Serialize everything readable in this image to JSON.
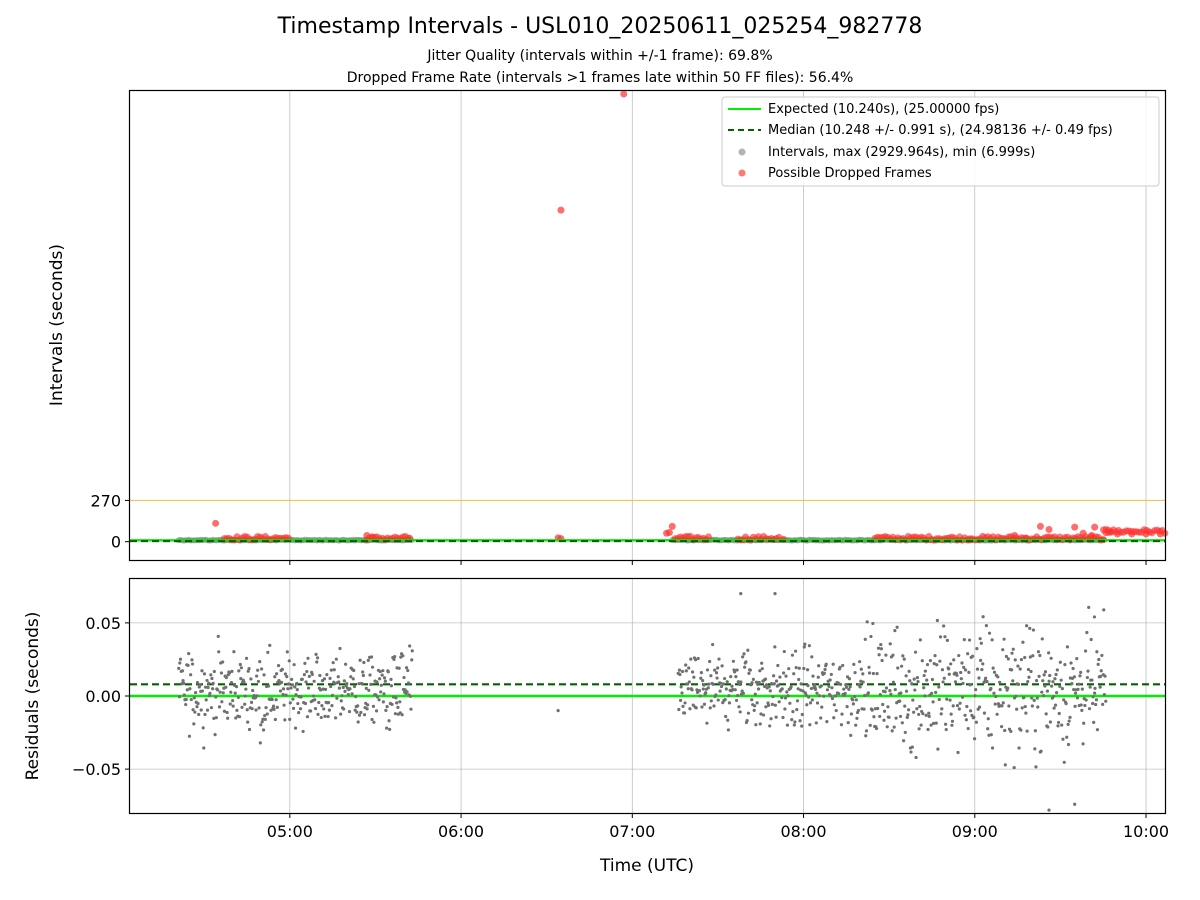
{
  "chart_data": {
    "title": "Timestamp Intervals - USL010_20250611_025254_982778",
    "subtitles": [
      "Jitter Quality (intervals within +/-1 frame): 69.8%",
      "Dropped Frame Rate (intervals >1 frames late within 50 FF files): 56.4%"
    ],
    "top_panel": {
      "type": "scatter",
      "ylabel": "Intervals (seconds)",
      "yticks": [
        0,
        270
      ],
      "ylim": [
        -120,
        2950
      ],
      "xlim": [
        "04:04",
        "10:07"
      ],
      "grid": true,
      "threshold_line": {
        "y": 270,
        "color": "#f5c542"
      },
      "legend_position": "upper right",
      "series": [
        {
          "name": "Expected (10.240s), (25.00000 fps)",
          "kind": "hline",
          "y": 10.24,
          "color": "#00ee00"
        },
        {
          "name": "Median (10.248 +/- 0.991 s), (24.98136 +/- 0.49 fps)",
          "kind": "hline-dashed",
          "y": 10.248,
          "color": "#006400"
        },
        {
          "name": "Intervals, max (2929.964s), min (6.999s)",
          "kind": "scatter",
          "color": "#808080",
          "segments": [
            [
              "04:21",
              "05:00"
            ],
            [
              "05:00",
              "05:43"
            ],
            [
              "07:14",
              "07:38"
            ],
            [
              "07:38",
              "08:25"
            ],
            [
              "08:25",
              "09:46"
            ]
          ],
          "y": 10.24
        },
        {
          "name": "Possible Dropped Frames",
          "kind": "scatter",
          "color": "#ff3030",
          "points": [
            [
              "04:34",
              120
            ],
            [
              "05:27",
              40
            ],
            [
              "05:29",
              25
            ],
            [
              "05:42",
              22
            ],
            [
              "06:57",
              2930
            ],
            [
              "06:35",
              2170
            ],
            [
              "06:34",
              25
            ],
            [
              "06:35",
              20
            ],
            [
              "07:12",
              55
            ],
            [
              "07:14",
              100
            ],
            [
              "07:13",
              60
            ],
            [
              "07:53",
              15
            ],
            [
              "08:58",
              12
            ],
            [
              "09:14",
              40
            ],
            [
              "09:18",
              20
            ],
            [
              "09:23",
              100
            ],
            [
              "09:26",
              80
            ],
            [
              "09:35",
              95
            ],
            [
              "09:38",
              55
            ],
            [
              "09:42",
              95
            ],
            [
              "09:41",
              40
            ],
            [
              "09:50",
              50
            ],
            [
              "09:55",
              50
            ],
            [
              "10:00",
              50
            ],
            [
              "10:05",
              50
            ]
          ],
          "dense_bands": [
            [
              "04:37",
              "05:00"
            ],
            [
              "05:27",
              "05:42"
            ],
            [
              "07:15",
              "07:27"
            ],
            [
              "07:37",
              "07:52"
            ],
            [
              "08:25",
              "09:48"
            ],
            [
              "09:45",
              "10:07"
            ]
          ]
        }
      ]
    },
    "bottom_panel": {
      "type": "scatter",
      "ylabel": "Residuals (seconds)",
      "xlabel": "Time (UTC)",
      "xticks": [
        "05:00",
        "06:00",
        "07:00",
        "08:00",
        "09:00",
        "10:00"
      ],
      "yticks": [
        "0.05",
        "0.00",
        "−0.05"
      ],
      "ylim": [
        -0.08,
        0.08
      ],
      "grid": true,
      "expected_line": {
        "y": 0.0,
        "color": "#00ee00"
      },
      "median_line": {
        "y": 0.008,
        "color": "#006400"
      },
      "point_color": "#707070",
      "clusters": [
        {
          "from": "04:21",
          "to": "05:43",
          "spread": 0.045
        },
        {
          "from": "07:16",
          "to": "08:22",
          "spread": 0.05
        },
        {
          "from": "08:22",
          "to": "09:46",
          "spread": 0.075
        }
      ],
      "outliers": [
        [
          "06:34",
          -0.01
        ],
        [
          "07:38",
          0.07
        ],
        [
          "07:50",
          0.07
        ],
        [
          "09:26",
          -0.078
        ],
        [
          "09:35",
          -0.074
        ],
        [
          "09:42",
          0.002
        ]
      ]
    }
  }
}
